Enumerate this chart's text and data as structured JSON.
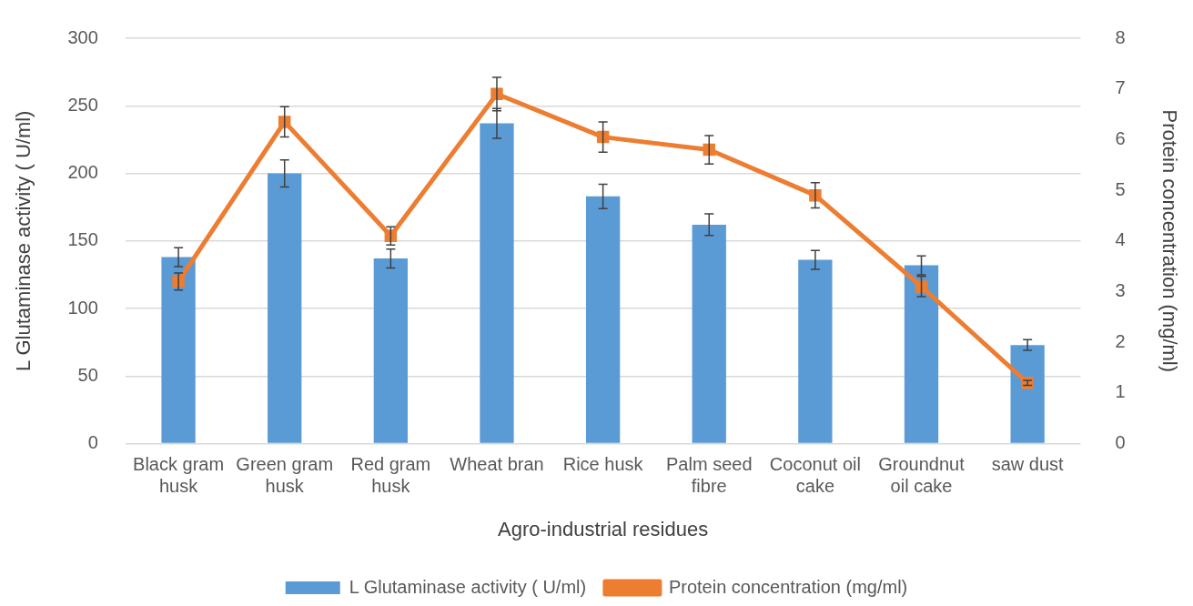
{
  "chart_data": {
    "type": "bar",
    "xlabel": "Agro-industrial residues",
    "ylabel": "L Glutaminase activity ( U/ml)",
    "y2label": "Protein concentration (mg/ml)",
    "categories": [
      [
        "Black gram",
        "husk"
      ],
      [
        "Green gram",
        "husk"
      ],
      [
        "Red gram",
        "husk"
      ],
      "Wheat bran",
      "Rice husk",
      [
        "Palm seed",
        "fibre"
      ],
      [
        "Coconut oil",
        "cake"
      ],
      [
        "Groundnut",
        "oil cake"
      ],
      "saw dust"
    ],
    "series": [
      {
        "name": "L Glutaminase activity ( U/ml)",
        "color": "#5b9bd5",
        "values": [
          138,
          200,
          137,
          237,
          183,
          162,
          136,
          132,
          73
        ],
        "errors": [
          7,
          10,
          7,
          11,
          9,
          8,
          7,
          7,
          4
        ]
      },
      {
        "name": "Protein concentration (mg/ml)",
        "type": "line",
        "axis": "y2",
        "color": "#ed7d31",
        "marker": "square",
        "values": [
          3.2,
          6.35,
          4.1,
          6.9,
          6.05,
          5.8,
          4.9,
          3.1,
          1.2
        ],
        "errors": [
          0.17,
          0.3,
          0.18,
          0.33,
          0.3,
          0.28,
          0.25,
          0.2,
          0.05
        ]
      }
    ],
    "ylim": [
      0,
      300
    ],
    "yticks": [
      0,
      50,
      100,
      150,
      200,
      250,
      300
    ],
    "y2lim": [
      0,
      8
    ],
    "y2ticks": [
      0,
      1,
      2,
      3,
      4,
      5,
      6,
      7,
      8
    ],
    "grid": "y",
    "legend": "bottom"
  }
}
